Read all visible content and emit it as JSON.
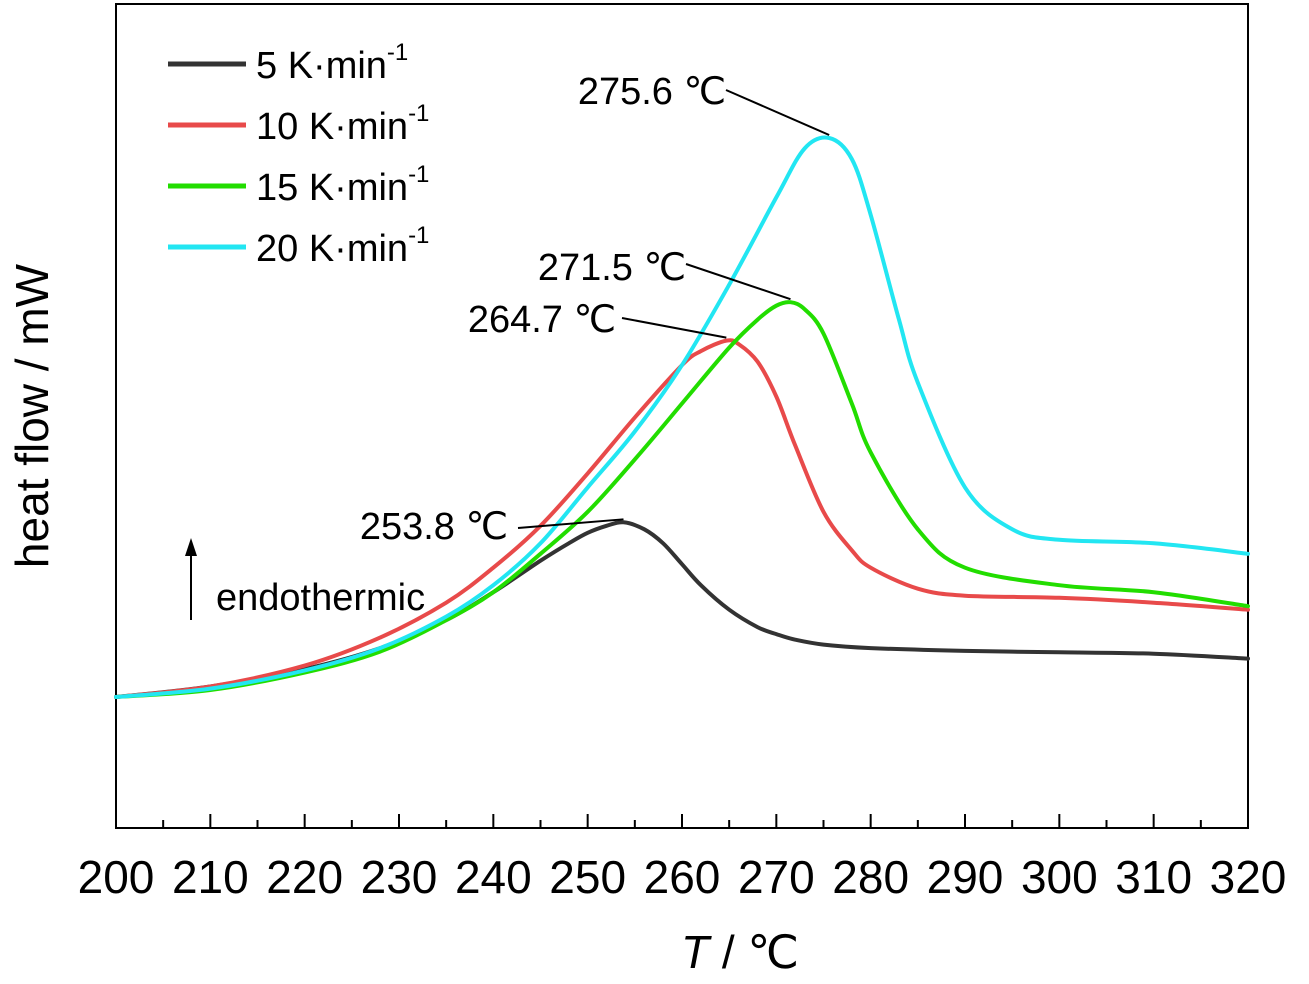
{
  "chart_data": {
    "type": "line",
    "title": "",
    "xlabel": "T / °C",
    "xlabel_var": "T",
    "xlabel_unit": "/ ℃",
    "ylabel": "heat flow / mW",
    "xlim": [
      200,
      320
    ],
    "ylim": [
      0,
      1
    ],
    "x_ticks": [
      "200",
      "210",
      "220",
      "230",
      "240",
      "250",
      "260",
      "270",
      "280",
      "290",
      "300",
      "310",
      "320"
    ],
    "y_ticks_labeled": false,
    "grid": false,
    "legend_position": "top-left",
    "indicator": {
      "label": "endothermic",
      "direction": "up"
    },
    "series": [
      {
        "name": "5 K·min",
        "rate_label": "5 K·min",
        "rate_exp": "-1",
        "color": "#333333",
        "x": [
          200,
          210,
          220,
          228,
          235,
          240,
          245,
          248,
          250,
          252,
          253.8,
          256,
          258,
          260,
          262,
          265,
          268,
          270,
          272,
          275,
          280,
          290,
          300,
          310,
          320
        ],
        "y": [
          0.2,
          0.215,
          0.24,
          0.27,
          0.31,
          0.35,
          0.395,
          0.42,
          0.435,
          0.445,
          0.45,
          0.44,
          0.42,
          0.39,
          0.36,
          0.325,
          0.3,
          0.29,
          0.282,
          0.275,
          0.27,
          0.266,
          0.264,
          0.262,
          0.255
        ]
      },
      {
        "name": "10 K·min",
        "rate_label": "10 K·min",
        "rate_exp": "-1",
        "color": "#e84a4a",
        "x": [
          200,
          210,
          220,
          228,
          235,
          240,
          245,
          250,
          255,
          260,
          262,
          264.7,
          266,
          268,
          270,
          272,
          275,
          278,
          280,
          285,
          290,
          300,
          310,
          320
        ],
        "y": [
          0.2,
          0.215,
          0.245,
          0.285,
          0.335,
          0.385,
          0.445,
          0.52,
          0.6,
          0.675,
          0.695,
          0.71,
          0.705,
          0.68,
          0.63,
          0.56,
          0.465,
          0.41,
          0.385,
          0.355,
          0.345,
          0.342,
          0.335,
          0.325
        ]
      },
      {
        "name": "15 K·min",
        "rate_label": "15 K·min",
        "rate_exp": "-1",
        "color": "#22dd00",
        "x": [
          200,
          210,
          220,
          228,
          235,
          240,
          245,
          250,
          255,
          260,
          265,
          268,
          270,
          271.5,
          273,
          275,
          278,
          280,
          285,
          290,
          300,
          310,
          320
        ],
        "y": [
          0.2,
          0.21,
          0.235,
          0.265,
          0.31,
          0.35,
          0.405,
          0.465,
          0.54,
          0.62,
          0.7,
          0.74,
          0.76,
          0.765,
          0.755,
          0.72,
          0.62,
          0.55,
          0.44,
          0.385,
          0.36,
          0.35,
          0.33
        ]
      },
      {
        "name": "20 K·min",
        "rate_label": "20 K·min",
        "rate_exp": "-1",
        "color": "#22e6f2",
        "x": [
          200,
          210,
          220,
          228,
          235,
          240,
          245,
          250,
          255,
          260,
          265,
          270,
          273,
          275.6,
          278,
          280,
          283,
          285,
          290,
          295,
          300,
          310,
          320
        ],
        "y": [
          0.2,
          0.212,
          0.238,
          0.27,
          0.315,
          0.36,
          0.42,
          0.5,
          0.58,
          0.675,
          0.79,
          0.915,
          0.985,
          1.0,
          0.97,
          0.89,
          0.74,
          0.65,
          0.5,
          0.44,
          0.425,
          0.42,
          0.405
        ]
      }
    ],
    "annotations": [
      {
        "text": "253.8 ℃",
        "x": 253.8,
        "series": 0
      },
      {
        "text": "264.7 ℃",
        "x": 264.7,
        "series": 1
      },
      {
        "text": "271.5 ℃",
        "x": 271.5,
        "series": 2
      },
      {
        "text": "275.6 ℃",
        "x": 275.6,
        "series": 3
      }
    ]
  }
}
